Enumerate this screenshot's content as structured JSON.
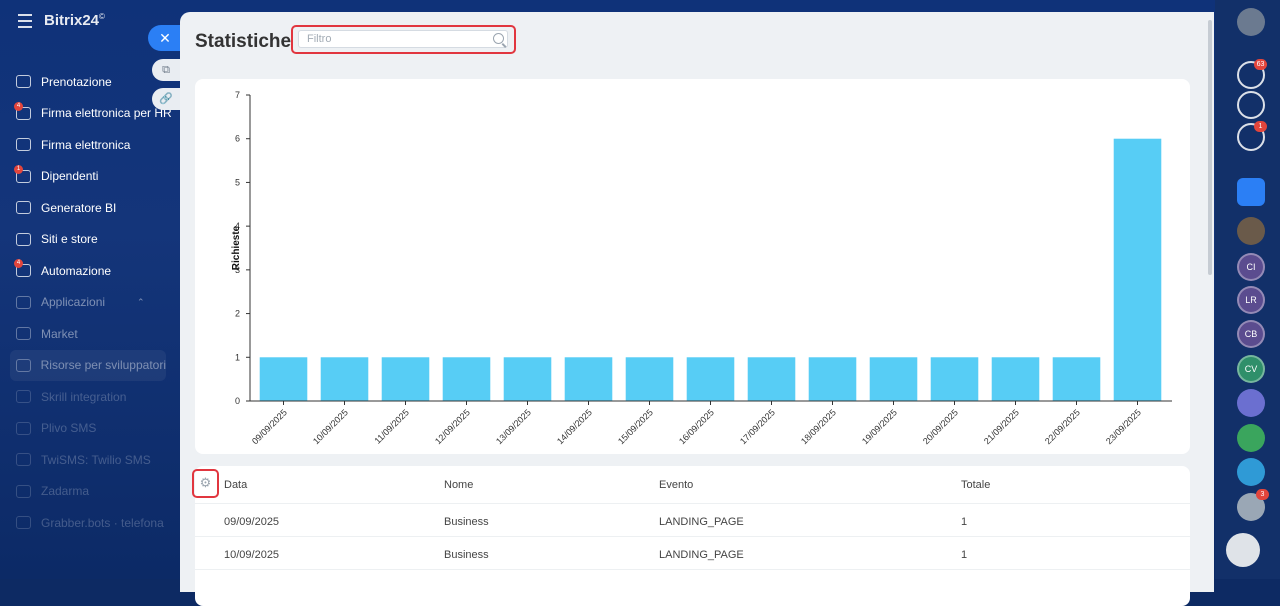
{
  "app": {
    "brand": "Bitrix24",
    "brand_mark": "©"
  },
  "sidebar": {
    "items": [
      {
        "label": "Prenotazione",
        "icon": "calendar-grid-icon",
        "badge": ""
      },
      {
        "label": "Firma elettronica per HR",
        "icon": "document-sign-icon",
        "badge": "4"
      },
      {
        "label": "Firma elettronica",
        "icon": "pen-icon",
        "badge": ""
      },
      {
        "label": "Dipendenti",
        "icon": "people-icon",
        "badge": "1"
      },
      {
        "label": "Generatore BI",
        "icon": "bar-chart-icon",
        "badge": ""
      },
      {
        "label": "Siti e store",
        "icon": "cart-icon",
        "badge": ""
      },
      {
        "label": "Automazione",
        "icon": "automation-icon",
        "badge": "4"
      },
      {
        "label": "Applicazioni",
        "icon": "apps-icon",
        "badge": ""
      },
      {
        "label": "Market",
        "icon": "market-icon",
        "badge": ""
      },
      {
        "label": "Risorse per sviluppatori",
        "icon": "code-icon",
        "badge": ""
      },
      {
        "label": "Skrill integration",
        "icon": "app-icon",
        "badge": ""
      },
      {
        "label": "Plivo SMS",
        "icon": "app-icon",
        "badge": ""
      },
      {
        "label": "TwiSMS: Twilio SMS",
        "icon": "app-icon",
        "badge": ""
      },
      {
        "label": "Zadarma",
        "icon": "app-icon",
        "badge": ""
      },
      {
        "label": "Grabber.bots · telefona",
        "icon": "app-icon",
        "badge": ""
      }
    ]
  },
  "right_bar": {
    "notifications_badge": "63",
    "chat_badge": "1",
    "avatars": [
      "CI",
      "LR",
      "CB",
      "CV"
    ],
    "bottom_badge": "3"
  },
  "panel": {
    "title": "Statistiche",
    "filter_placeholder": "Filtro"
  },
  "chart_data": {
    "type": "bar",
    "ylabel": "Richieste",
    "xlabel": "",
    "ylim": [
      0,
      7
    ],
    "yticks": [
      0,
      1,
      2,
      3,
      4,
      5,
      6,
      7
    ],
    "categories": [
      "09/09/2025",
      "10/09/2025",
      "11/09/2025",
      "12/09/2025",
      "13/09/2025",
      "14/09/2025",
      "15/09/2025",
      "16/09/2025",
      "17/09/2025",
      "18/09/2025",
      "19/09/2025",
      "20/09/2025",
      "21/09/2025",
      "22/09/2025",
      "23/09/2025"
    ],
    "values": [
      1,
      1,
      1,
      1,
      1,
      1,
      1,
      1,
      1,
      1,
      1,
      1,
      1,
      1,
      6
    ],
    "bar_color": "#57cdf5"
  },
  "table": {
    "columns": [
      "Data",
      "Nome",
      "Evento",
      "Totale"
    ],
    "rows": [
      [
        "09/09/2025",
        "Business",
        "LANDING_PAGE",
        "1"
      ],
      [
        "10/09/2025",
        "Business",
        "LANDING_PAGE",
        "1"
      ]
    ]
  },
  "colors": {
    "highlight": "#e1363f",
    "accent": "#2b7ff5"
  }
}
